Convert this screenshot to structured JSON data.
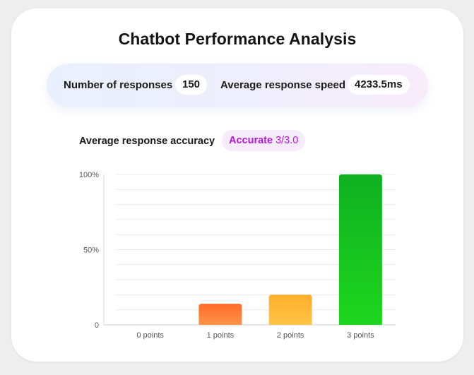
{
  "header": {
    "title": "Chatbot Performance Analysis"
  },
  "stats": {
    "responses_label": "Number of responses",
    "responses_value": "150",
    "speed_label": "Average response speed",
    "speed_value": "4233.5ms"
  },
  "accuracy": {
    "label": "Average response accuracy",
    "rating": "Accurate",
    "score": "3/3.0"
  },
  "colors": {
    "accent": "#b416e0",
    "bar_0": "#ff6d2c",
    "bar_1": "#ff6d2c",
    "bar_2": "#ffb02e",
    "bar_3": "#14c11c"
  },
  "chart_data": {
    "type": "bar",
    "categories": [
      "0 points",
      "1 points",
      "2 points",
      "3 points"
    ],
    "values": [
      0,
      14,
      20,
      100
    ],
    "ylim": [
      0,
      100
    ],
    "yticks": [
      {
        "value": 0,
        "label": "0"
      },
      {
        "value": 50,
        "label": "50%"
      },
      {
        "value": 100,
        "label": "100%"
      }
    ],
    "grid": true,
    "legend": "none",
    "title": "",
    "xlabel": "",
    "ylabel": ""
  }
}
